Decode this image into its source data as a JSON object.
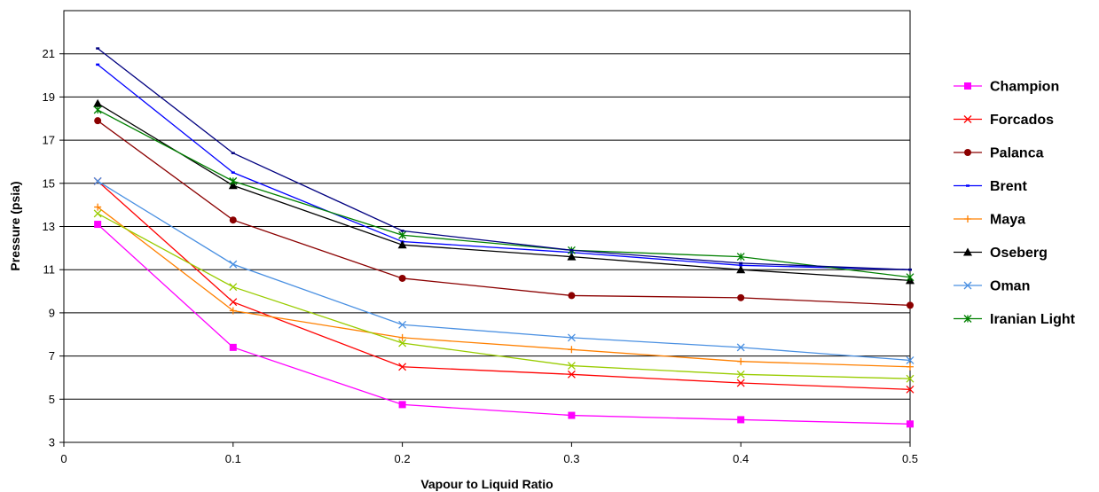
{
  "chart_data": {
    "type": "line",
    "title": "",
    "xlabel": "Vapour to Liquid Ratio",
    "ylabel": "Pressure (psia)",
    "xlim": [
      0,
      0.5
    ],
    "ylim": [
      3,
      23
    ],
    "xticks": [
      "0",
      "0.1",
      "0.2",
      "0.3",
      "0.4",
      "0.5"
    ],
    "yticks": [
      "3",
      "5",
      "7",
      "9",
      "11",
      "13",
      "15",
      "17",
      "19",
      "21"
    ],
    "grid": "horizontal",
    "legend_position": "right",
    "x": [
      0.02,
      0.1,
      0.2,
      0.3,
      0.4,
      0.5
    ],
    "series": [
      {
        "name": "Champion",
        "color": "#ff00ff",
        "marker": "square",
        "values": [
          13.1,
          7.4,
          4.75,
          4.25,
          4.05,
          3.85
        ]
      },
      {
        "name": "Forcados",
        "color": "#ff0000",
        "marker": "x",
        "values": [
          15.1,
          9.5,
          6.5,
          6.15,
          5.75,
          5.45
        ]
      },
      {
        "name": "Palanca",
        "color": "#8b0000",
        "marker": "circle",
        "values": [
          17.9,
          13.3,
          10.6,
          9.8,
          9.7,
          9.35
        ]
      },
      {
        "name": "Brent",
        "color": "#0000ff",
        "marker": "dash",
        "values": [
          20.5,
          15.5,
          12.3,
          11.8,
          11.2,
          11.0
        ]
      },
      {
        "name": "Maya",
        "color": "#ff8000",
        "marker": "plus",
        "values": [
          13.9,
          9.1,
          7.85,
          7.3,
          6.75,
          6.5
        ]
      },
      {
        "name": "Oseberg",
        "color": "#000000",
        "marker": "triangle",
        "values": [
          18.7,
          14.9,
          12.15,
          11.6,
          11.0,
          10.5
        ]
      },
      {
        "name": "Oman",
        "color": "#4a90e2",
        "marker": "x",
        "values": [
          15.1,
          11.25,
          8.45,
          7.85,
          7.4,
          6.8
        ]
      },
      {
        "name": "Iranian Light",
        "color": "#008000",
        "marker": "star",
        "values": [
          18.4,
          15.1,
          12.6,
          11.9,
          11.6,
          10.65
        ]
      },
      {
        "color": "#000080",
        "marker": "dash",
        "values": [
          21.25,
          16.4,
          12.8,
          11.9,
          11.3,
          11.0
        ]
      },
      {
        "color": "#99cc00",
        "marker": "x",
        "values": [
          13.6,
          10.2,
          7.6,
          6.55,
          6.15,
          5.95
        ]
      }
    ]
  }
}
